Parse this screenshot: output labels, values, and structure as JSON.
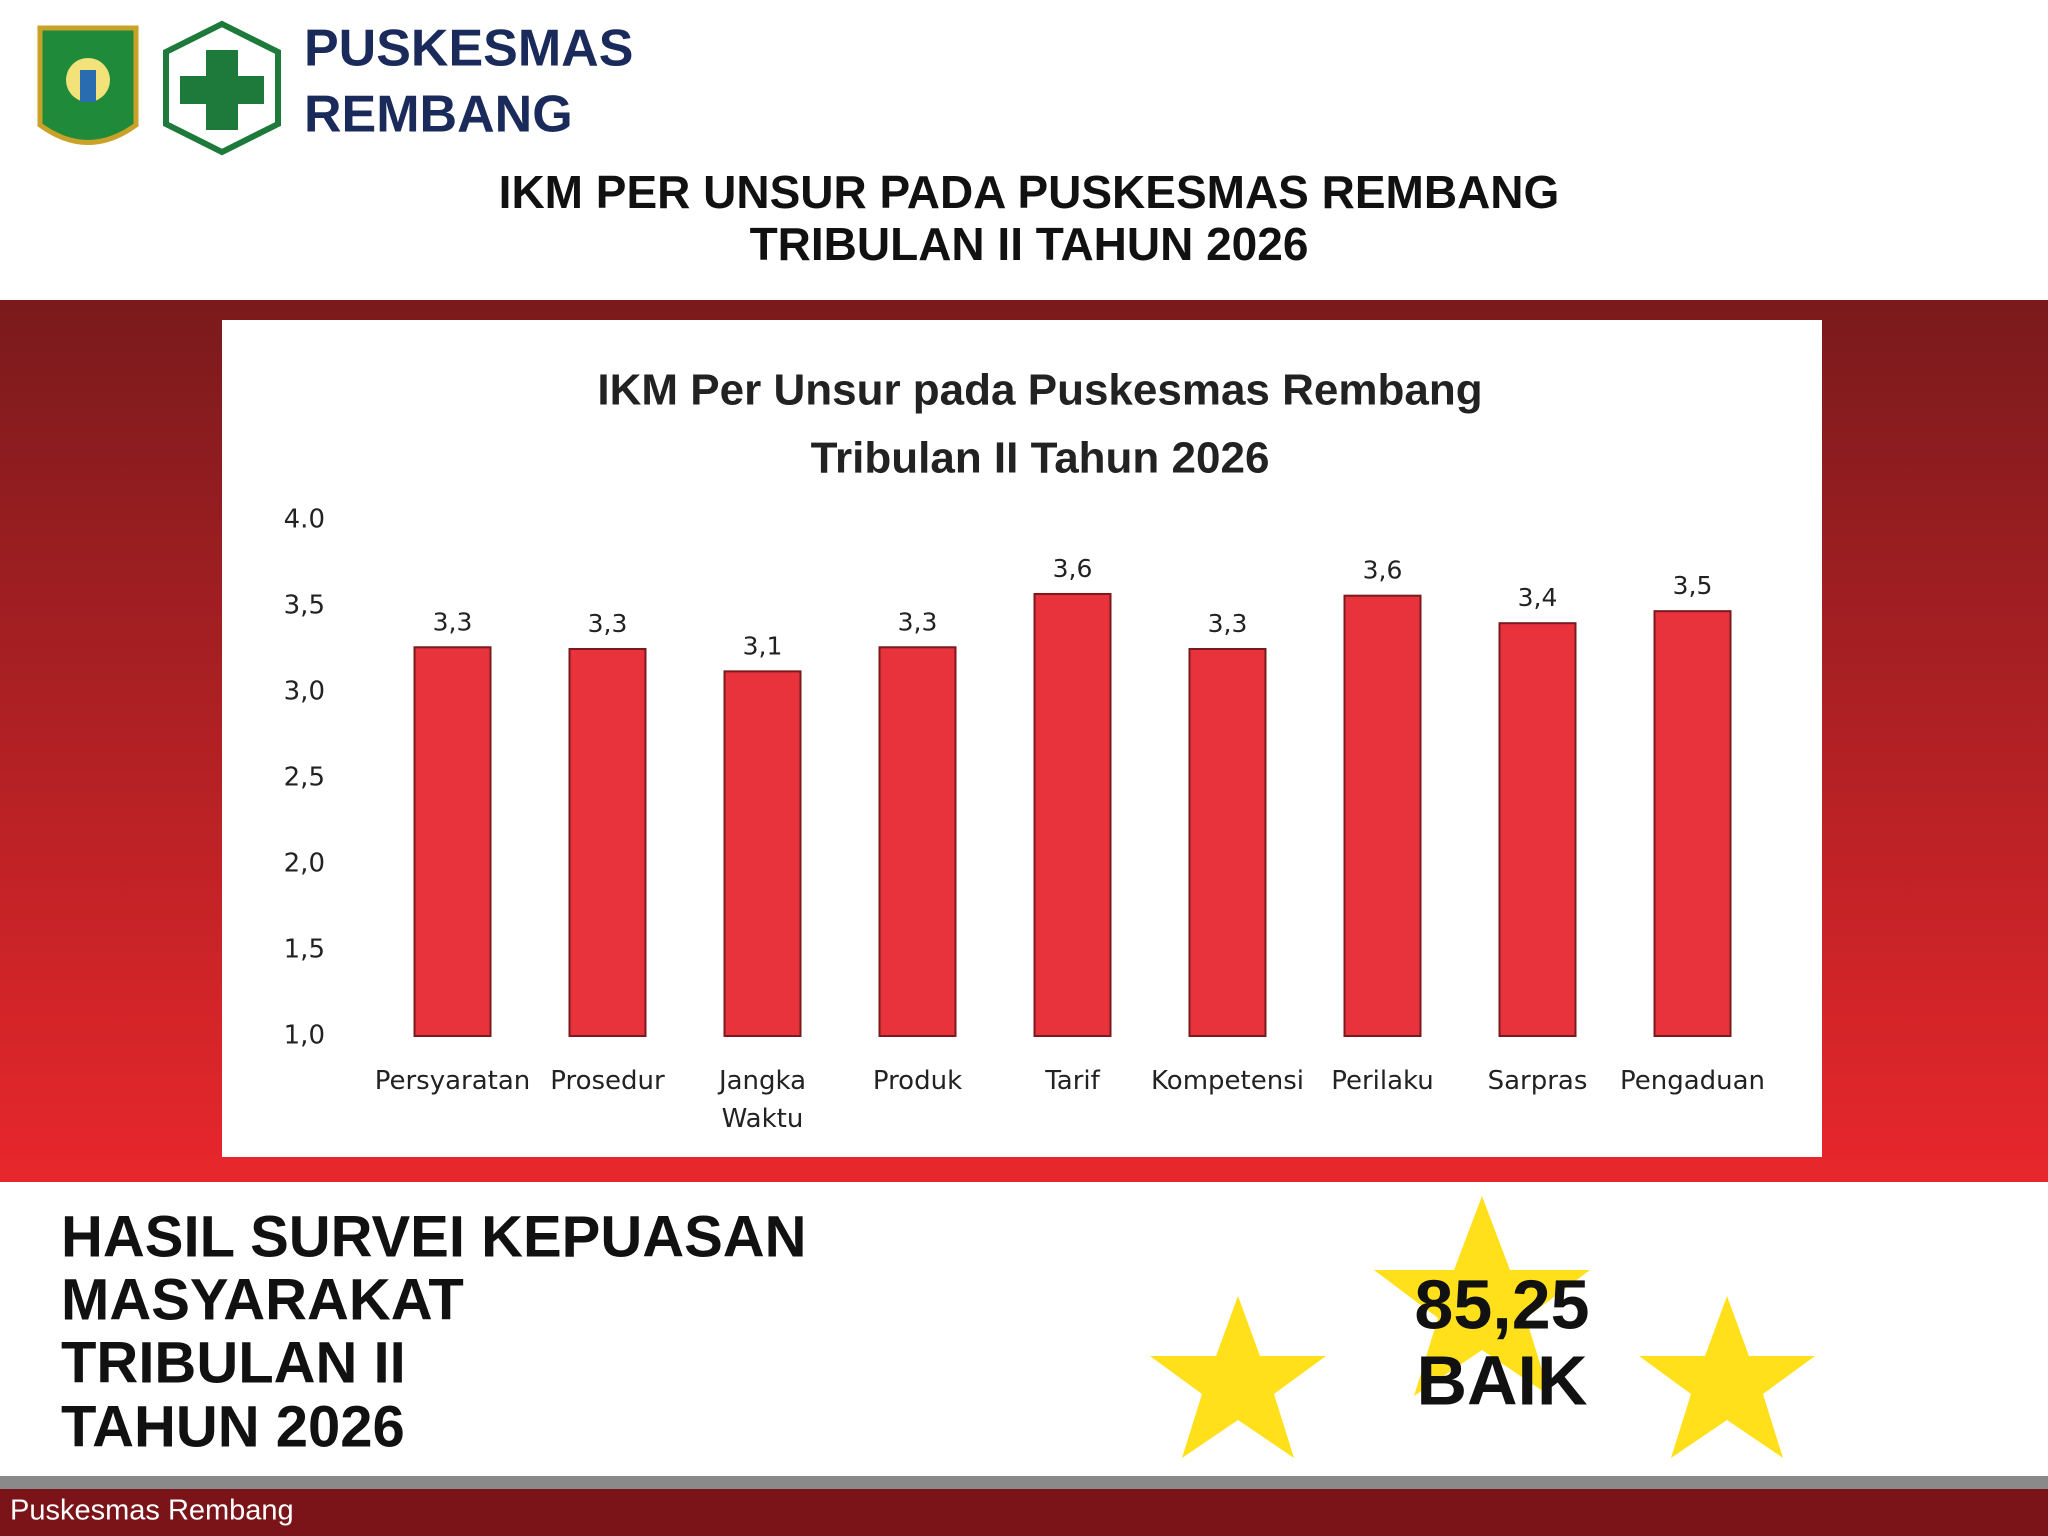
{
  "header": {
    "brand": [
      "PUSKESMAS",
      "REMBANG"
    ],
    "title": [
      "IKM PER UNSUR PADA PUSKESMAS REMBANG",
      "TRIBULAN II TAHUN 2026"
    ]
  },
  "chart_data": {
    "type": "bar",
    "title": [
      "IKM Per Unsur pada  Puskesmas Rembang",
      "Tribulan II Tahun 2026"
    ],
    "categories": [
      "Persyaratan",
      "Prosedur",
      "Jangka Waktu",
      "Produk",
      "Tarif",
      "Kompetensi",
      "Perilaku",
      "Sarpras",
      "Pengaduan"
    ],
    "values": [
      3.26,
      3.25,
      3.12,
      3.26,
      3.57,
      3.25,
      3.56,
      3.4,
      3.47
    ],
    "value_labels": [
      "3,3",
      "3,3",
      "3,1",
      "3,3",
      "3,6",
      "3,3",
      "3,6",
      "3,4",
      "3,5"
    ],
    "color": "#e8323c",
    "ylim": [
      1,
      4
    ],
    "yticks": [
      {
        "value": 1,
        "label": "1,0"
      },
      {
        "value": 1.5,
        "label": "1,5"
      },
      {
        "value": 2,
        "label": "2,0"
      },
      {
        "value": 2.5,
        "label": "2,5"
      },
      {
        "value": 3,
        "label": "3,0"
      },
      {
        "value": 3.5,
        "label": "3,5"
      },
      {
        "value": 4,
        "label": "4.0"
      }
    ],
    "grid": false
  },
  "summary": {
    "heading": [
      "HASIL SURVEI KEPUASAN",
      "MASYARAKAT",
      "TRIBULAN II",
      "TAHUN 2026"
    ],
    "score": "85,25",
    "rating": "BAIK"
  },
  "footer": {
    "text": "Puskesmas Rembang"
  }
}
